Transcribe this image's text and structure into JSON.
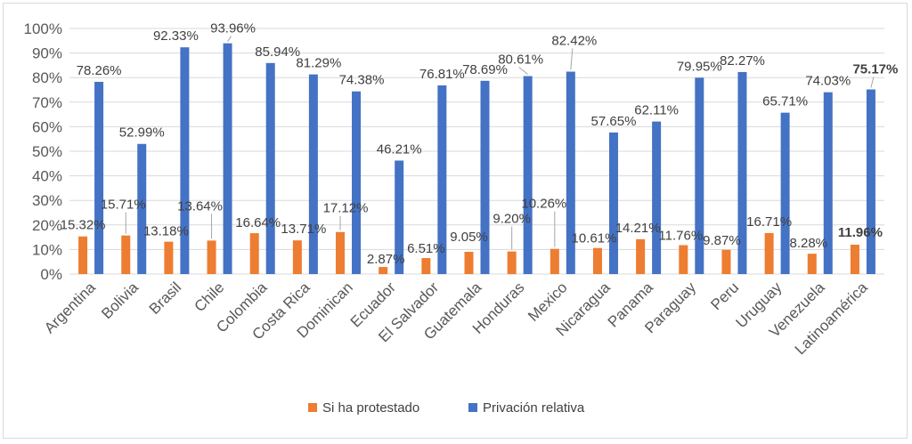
{
  "chart_data": {
    "type": "bar",
    "title": "",
    "xlabel": "",
    "ylabel": "",
    "ylim": [
      0,
      100
    ],
    "y_ticks": [
      "0%",
      "10%",
      "20%",
      "30%",
      "40%",
      "50%",
      "60%",
      "70%",
      "80%",
      "90%",
      "100%"
    ],
    "grid": true,
    "legend_position": "bottom",
    "categories": [
      "Argentina",
      "Bolivia",
      "Brasil",
      "Chile",
      "Colombia",
      "Costa Rica",
      "Dominican",
      "Ecuador",
      "El Salvador",
      "Guatemala",
      "Honduras",
      "Mexico",
      "Nicaragua",
      "Panama",
      "Paraguay",
      "Peru",
      "Uruguay",
      "Venezuela",
      "Latinoamérica"
    ],
    "series": [
      {
        "name": "Si ha protestado",
        "color": "#ED7D31",
        "values": [
          15.32,
          15.71,
          13.18,
          13.64,
          16.64,
          13.71,
          17.12,
          2.87,
          6.51,
          9.05,
          9.2,
          10.26,
          10.61,
          14.21,
          11.76,
          9.87,
          16.71,
          8.28,
          11.96
        ],
        "labels": [
          "15.32%",
          "15.71%",
          "13.18%",
          "13.64%",
          "16.64%",
          "13.71%",
          "17.12%",
          "2.87%",
          "6.51%",
          "9.05%",
          "9.20%",
          "10.26%",
          "10.61%",
          "14.21%",
          "11.76%",
          "9.87%",
          "16.71%",
          "8.28%",
          "11.96%"
        ]
      },
      {
        "name": "Privación relativa",
        "color": "#4472C4",
        "values": [
          78.26,
          52.99,
          92.33,
          93.96,
          85.94,
          81.29,
          74.38,
          46.21,
          76.81,
          78.69,
          80.61,
          82.42,
          57.65,
          62.11,
          79.95,
          82.27,
          65.71,
          74.03,
          75.17
        ],
        "labels": [
          "78.26%",
          "52.99%",
          "92.33%",
          "93.96%",
          "85.94%",
          "81.29%",
          "74.38%",
          "46.21%",
          "76.81%",
          "78.69%",
          "80.61%",
          "82.42%",
          "57.65%",
          "62.11%",
          "79.95%",
          "82.27%",
          "65.71%",
          "74.03%",
          "75.17%"
        ]
      }
    ],
    "bold_category": "Latinoamérica"
  }
}
